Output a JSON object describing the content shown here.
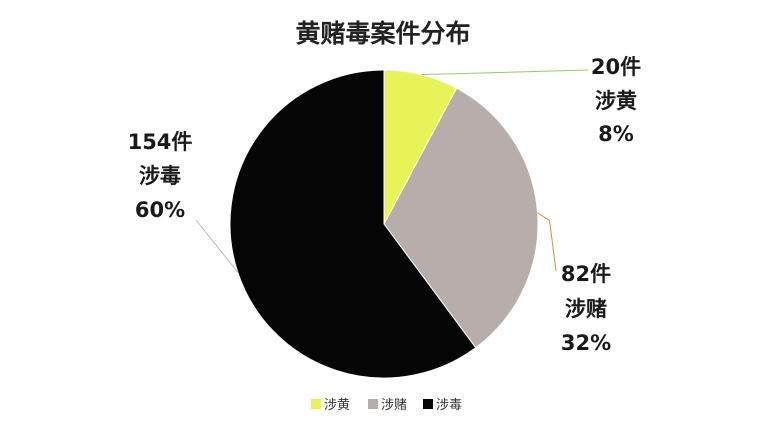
{
  "chart_data": {
    "type": "pie",
    "title": "黄赌毒案件分布",
    "slices": [
      {
        "name": "涉黄",
        "value": 20,
        "percent": 8,
        "count_label": "20件",
        "pct_label": "8%",
        "color": "#e8f35a",
        "leader_color": "#9bc96a"
      },
      {
        "name": "涉赌",
        "value": 82,
        "percent": 32,
        "count_label": "82件",
        "pct_label": "32%",
        "color": "#b7adaa",
        "leader_color": "#e08a3c"
      },
      {
        "name": "涉毒",
        "value": 154,
        "percent": 60,
        "count_label": "154件",
        "pct_label": "60%",
        "color": "#050505",
        "leader_color": "#bbbbbb"
      }
    ],
    "legend_position": "bottom"
  }
}
